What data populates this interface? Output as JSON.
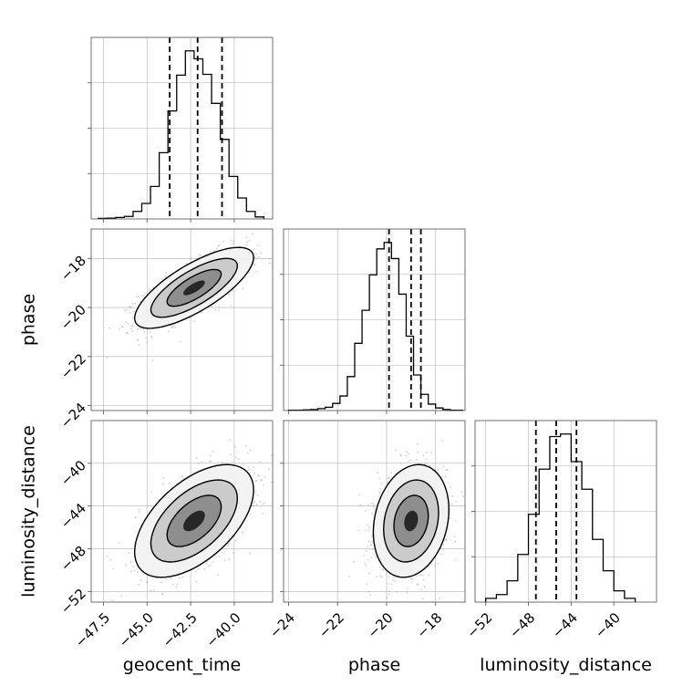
{
  "chart_data": {
    "type": "corner",
    "parameters": [
      "geocent_time",
      "phase",
      "luminosity_distance"
    ],
    "ranges": {
      "geocent_time": [
        -48.2,
        -37.8
      ],
      "phase": [
        -24.2,
        -16.8
      ],
      "luminosity_distance": [
        -53.0,
        -36.0
      ]
    },
    "ticks": {
      "geocent_time": {
        "values": [
          -47.5,
          -45.0,
          -42.5,
          -40.0
        ],
        "labels": [
          "−47.5",
          "−45.0",
          "−42.5",
          "−40.0"
        ]
      },
      "phase": {
        "values": [
          -24,
          -22,
          -20,
          -18
        ],
        "labels": [
          "−24",
          "−22",
          "−20",
          "−18"
        ]
      },
      "luminosity_distance": {
        "values": [
          -52,
          -48,
          -44,
          -40
        ],
        "labels": [
          "−52",
          "−48",
          "−44",
          "−40"
        ]
      }
    },
    "quantiles": {
      "geocent_time": [
        -43.7,
        -42.1,
        -40.7
      ],
      "phase": [
        -19.9,
        -19.0,
        -18.6
      ],
      "luminosity_distance": [
        -47.3,
        -45.4,
        -43.5
      ]
    },
    "histograms": {
      "geocent_time": {
        "edges": [
          -47.8,
          -47.3,
          -46.8,
          -46.3,
          -45.8,
          -45.3,
          -44.8,
          -44.3,
          -43.8,
          -43.3,
          -42.8,
          -42.3,
          -41.8,
          -41.3,
          -40.8,
          -40.3,
          -39.8,
          -39.3,
          -38.8,
          -38.3
        ],
        "counts": [
          2,
          3,
          6,
          10,
          30,
          62,
          130,
          265,
          432,
          575,
          672,
          640,
          578,
          462,
          318,
          170,
          84,
          30,
          8
        ]
      },
      "phase": {
        "edges": [
          -24.0,
          -23.7,
          -23.4,
          -23.1,
          -22.8,
          -22.5,
          -22.2,
          -21.9,
          -21.6,
          -21.3,
          -21.0,
          -20.7,
          -20.4,
          -20.1,
          -19.8,
          -19.5,
          -19.2,
          -18.9,
          -18.6,
          -18.3,
          -18.0,
          -17.7,
          -17.4,
          -17.1,
          -16.9
        ],
        "counts": [
          1,
          1,
          2,
          3,
          6,
          10,
          22,
          45,
          105,
          208,
          310,
          420,
          500,
          520,
          470,
          360,
          230,
          110,
          50,
          20,
          8,
          3,
          1,
          1
        ]
      },
      "luminosity_distance": {
        "edges": [
          -52.0,
          -51.0,
          -50.0,
          -49.0,
          -48.0,
          -47.0,
          -46.0,
          -45.0,
          -44.0,
          -43.0,
          -42.0,
          -41.0,
          -40.0,
          -39.0,
          -38.0
        ],
        "counts": [
          15,
          30,
          85,
          190,
          350,
          530,
          660,
          670,
          560,
          450,
          250,
          125,
          45,
          15
        ]
      }
    },
    "pairs": [
      {
        "x": "geocent_time",
        "y": "phase",
        "mean": [
          -42.3,
          -19.2
        ],
        "sd": [
          1.55,
          0.75
        ],
        "rho": 0.75
      },
      {
        "x": "geocent_time",
        "y": "luminosity_distance",
        "mean": [
          -42.3,
          -45.4
        ],
        "sd": [
          1.55,
          2.4
        ],
        "rho": 0.55
      },
      {
        "x": "phase",
        "y": "luminosity_distance",
        "mean": [
          -19.0,
          -45.4
        ],
        "sd": [
          0.7,
          2.4
        ],
        "rho": 0.2
      }
    ],
    "contour_levels": [
      0.4,
      1.0,
      1.6,
      2.2
    ],
    "grid": true,
    "colors": {
      "points": "#9a9a9a",
      "lines": "#000000",
      "grid": "#b0b0b0",
      "axes": "#4d4d4d",
      "background": "#ffffff"
    }
  }
}
